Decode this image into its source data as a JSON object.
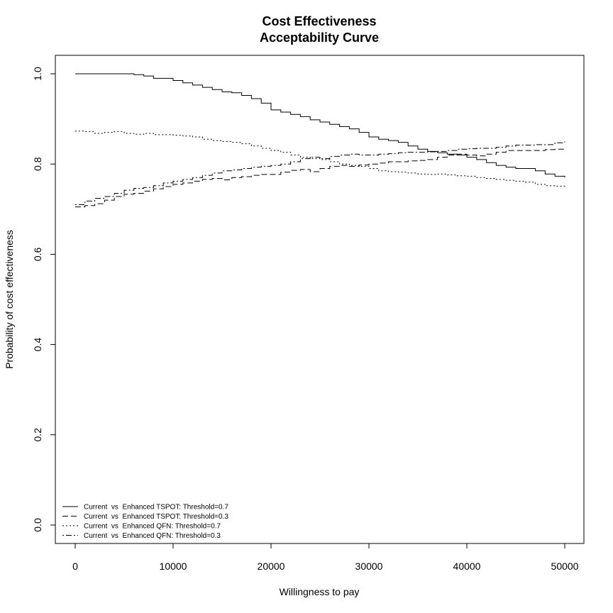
{
  "chart_data": {
    "type": "line",
    "title_line1": "Cost Effectiveness",
    "title_line2": "Acceptability Curve",
    "xlabel": "Willingness to pay",
    "ylabel": "Probability of cost effectiveness",
    "xlim": [
      0,
      50000
    ],
    "ylim": [
      0.0,
      1.0
    ],
    "xticks": [
      0,
      10000,
      20000,
      30000,
      40000,
      50000
    ],
    "xtick_labels": [
      "0",
      "10000",
      "20000",
      "30000",
      "40000",
      "50000"
    ],
    "yticks": [
      0.0,
      0.2,
      0.4,
      0.6,
      0.8,
      1.0
    ],
    "ytick_labels": [
      "0.0",
      "0.2",
      "0.4",
      "0.6",
      "0.8",
      "1.0"
    ],
    "grid": false,
    "legend_position": "bottom-left",
    "series": [
      {
        "name": "Current  vs  Enhanced TSPOT: Threshold=0.7",
        "line_style": "solid",
        "x": [
          0,
          2000,
          4000,
          6000,
          7000,
          8000,
          10000,
          11000,
          12000,
          13000,
          14000,
          15000,
          16000,
          17000,
          18000,
          19000,
          20000,
          21000,
          22000,
          23000,
          24000,
          25000,
          26000,
          27000,
          28000,
          29000,
          30000,
          31000,
          32000,
          33000,
          34000,
          35000,
          36000,
          37000,
          38000,
          39000,
          40000,
          41000,
          42000,
          43000,
          44000,
          45000,
          46000,
          47000,
          48000,
          49000,
          50000
        ],
        "y": [
          1.0,
          1.0,
          1.0,
          0.998,
          0.995,
          0.99,
          0.985,
          0.98,
          0.975,
          0.97,
          0.965,
          0.96,
          0.958,
          0.952,
          0.945,
          0.935,
          0.92,
          0.915,
          0.91,
          0.905,
          0.898,
          0.893,
          0.888,
          0.883,
          0.878,
          0.87,
          0.86,
          0.855,
          0.852,
          0.848,
          0.84,
          0.833,
          0.828,
          0.825,
          0.822,
          0.82,
          0.815,
          0.81,
          0.803,
          0.797,
          0.793,
          0.79,
          0.79,
          0.785,
          0.778,
          0.773,
          0.77
        ]
      },
      {
        "name": "Current  vs  Enhanced TSPOT: Threshold=0.3",
        "line_style": "dashed",
        "x": [
          0,
          1000,
          2000,
          3000,
          4000,
          5000,
          6000,
          7000,
          8000,
          9000,
          10000,
          11000,
          12000,
          13000,
          14000,
          15000,
          16000,
          17000,
          18000,
          19000,
          20000,
          21000,
          22000,
          23000,
          24000,
          25000,
          26000,
          27000,
          28000,
          29000,
          30000,
          31000,
          32000,
          33000,
          34000,
          35000,
          36000,
          37000,
          38000,
          39000,
          40000,
          41000,
          42000,
          43000,
          44000,
          45000,
          46000,
          47000,
          48000,
          49000,
          50000
        ],
        "y": [
          0.705,
          0.708,
          0.712,
          0.72,
          0.728,
          0.733,
          0.735,
          0.74,
          0.745,
          0.75,
          0.755,
          0.758,
          0.762,
          0.766,
          0.768,
          0.765,
          0.77,
          0.772,
          0.775,
          0.777,
          0.777,
          0.782,
          0.786,
          0.788,
          0.783,
          0.79,
          0.795,
          0.797,
          0.795,
          0.798,
          0.8,
          0.802,
          0.805,
          0.805,
          0.807,
          0.808,
          0.81,
          0.815,
          0.82,
          0.822,
          0.82,
          0.818,
          0.822,
          0.826,
          0.83,
          0.83,
          0.83,
          0.83,
          0.832,
          0.833,
          0.833
        ]
      },
      {
        "name": "Current  vs  Enhanced QFN: Threshold=0.7",
        "line_style": "dotted",
        "x": [
          0,
          1000,
          2000,
          3000,
          4000,
          5000,
          6000,
          7000,
          8000,
          9000,
          10000,
          11000,
          12000,
          13000,
          14000,
          15000,
          16000,
          17000,
          18000,
          19000,
          20000,
          21000,
          22000,
          23000,
          24000,
          25000,
          26000,
          27000,
          28000,
          29000,
          30000,
          31000,
          32000,
          33000,
          34000,
          35000,
          36000,
          37000,
          38000,
          39000,
          40000,
          41000,
          42000,
          43000,
          44000,
          45000,
          46000,
          47000,
          48000,
          49000,
          50000
        ],
        "y": [
          0.873,
          0.872,
          0.868,
          0.87,
          0.872,
          0.868,
          0.866,
          0.868,
          0.865,
          0.865,
          0.864,
          0.862,
          0.86,
          0.855,
          0.852,
          0.85,
          0.848,
          0.845,
          0.84,
          0.835,
          0.83,
          0.826,
          0.82,
          0.815,
          0.812,
          0.81,
          0.805,
          0.8,
          0.797,
          0.795,
          0.79,
          0.785,
          0.783,
          0.782,
          0.78,
          0.778,
          0.777,
          0.778,
          0.776,
          0.774,
          0.773,
          0.77,
          0.768,
          0.766,
          0.764,
          0.762,
          0.76,
          0.755,
          0.752,
          0.751,
          0.75
        ]
      },
      {
        "name": "Current  vs  Enhanced QFN: Threshold=0.3",
        "line_style": "dotdash",
        "x": [
          0,
          1000,
          2000,
          3000,
          4000,
          5000,
          6000,
          7000,
          8000,
          9000,
          10000,
          11000,
          12000,
          13000,
          14000,
          15000,
          16000,
          17000,
          18000,
          19000,
          20000,
          21000,
          22000,
          23000,
          24000,
          25000,
          26000,
          27000,
          28000,
          29000,
          30000,
          31000,
          32000,
          33000,
          34000,
          35000,
          36000,
          37000,
          38000,
          39000,
          40000,
          41000,
          42000,
          43000,
          44000,
          45000,
          46000,
          47000,
          48000,
          49000,
          50000
        ],
        "y": [
          0.71,
          0.718,
          0.724,
          0.728,
          0.735,
          0.742,
          0.746,
          0.748,
          0.752,
          0.758,
          0.762,
          0.766,
          0.77,
          0.775,
          0.78,
          0.785,
          0.787,
          0.79,
          0.793,
          0.795,
          0.797,
          0.8,
          0.805,
          0.812,
          0.815,
          0.812,
          0.817,
          0.82,
          0.822,
          0.82,
          0.82,
          0.822,
          0.823,
          0.825,
          0.826,
          0.826,
          0.827,
          0.828,
          0.83,
          0.833,
          0.834,
          0.835,
          0.835,
          0.837,
          0.84,
          0.842,
          0.842,
          0.843,
          0.843,
          0.847,
          0.85
        ]
      }
    ]
  }
}
